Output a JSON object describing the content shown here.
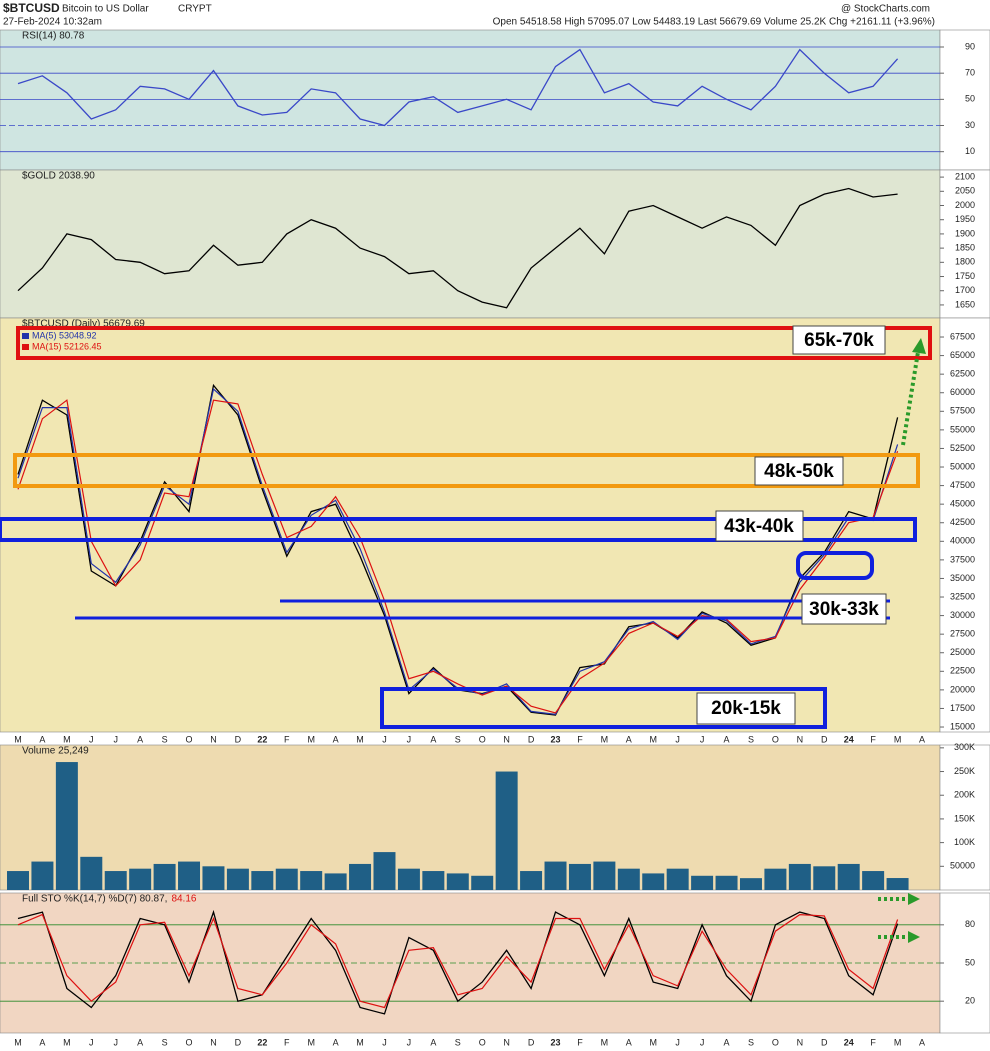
{
  "header": {
    "symbol": "$BTCUSD",
    "name": "Bitcoin to US Dollar",
    "exchange": "CRYPT",
    "date": "27-Feb-2024 10:32am",
    "quote": "Open 54518.58  High 57095.07  Low 54483.19  Last 56679.69  Volume 25.2K  Chg +2161.11 (+3.96%)",
    "source": "@ StockCharts.com"
  },
  "chart_data": [
    {
      "type": "line",
      "title": [
        "RSI(14) 80.78"
      ],
      "background": "#cfe5e1",
      "ylim": [
        -4,
        103
      ],
      "yticks": [
        10,
        30,
        50,
        70,
        90
      ],
      "grid": true,
      "series": [
        {
          "color": "#3a48c8",
          "values": [
            62,
            68,
            55,
            35,
            42,
            60,
            58,
            50,
            72,
            45,
            38,
            40,
            58,
            55,
            35,
            30,
            48,
            52,
            40,
            45,
            50,
            42,
            75,
            88,
            55,
            62,
            48,
            45,
            60,
            50,
            42,
            60,
            88,
            70,
            55,
            60,
            81,
            null
          ]
        }
      ]
    },
    {
      "type": "line",
      "title": [
        "$GOLD 2038.90"
      ],
      "background": "#dfe6d2",
      "ylim": [
        1604,
        2125
      ],
      "yticks": [
        1650,
        1700,
        1750,
        1800,
        1850,
        1900,
        1950,
        2000,
        2050,
        2100
      ],
      "grid": false,
      "series": [
        {
          "color": "#000000",
          "values": [
            1700,
            1780,
            1900,
            1880,
            1810,
            1800,
            1760,
            1770,
            1860,
            1790,
            1800,
            1900,
            1950,
            1920,
            1850,
            1820,
            1760,
            1770,
            1700,
            1660,
            1640,
            1780,
            1850,
            1920,
            1830,
            1980,
            2000,
            1960,
            1920,
            1960,
            1930,
            1860,
            2000,
            2040,
            2060,
            2030,
            2040,
            null
          ]
        }
      ]
    },
    {
      "type": "line",
      "title": [
        "$BTCUSD (Daily) 56679.69"
      ],
      "background": "#f1e7b3",
      "ylim": [
        14330,
        70060
      ],
      "yticks": [
        15000,
        17500,
        20000,
        22500,
        25000,
        27500,
        30000,
        32500,
        35000,
        37500,
        40000,
        42500,
        45000,
        47500,
        50000,
        52500,
        55000,
        57500,
        60000,
        62500,
        65000,
        67500
      ],
      "grid": false,
      "categories": [
        "M",
        "A",
        "M",
        "J",
        "J",
        "A",
        "S",
        "O",
        "N",
        "D",
        "22",
        "F",
        "M",
        "A",
        "M",
        "J",
        "J",
        "A",
        "S",
        "O",
        "N",
        "D",
        "23",
        "F",
        "M",
        "A",
        "M",
        "J",
        "J",
        "A",
        "S",
        "O",
        "N",
        "D",
        "24",
        "F",
        "M",
        "A"
      ],
      "annotations": [
        "65k-70k",
        "48k-50k",
        "43k-40k",
        "30k-33k",
        "20k-15k"
      ],
      "series": [
        {
          "color": "#000000",
          "values": [
            49000,
            59000,
            57000,
            36000,
            34000,
            40000,
            48000,
            44000,
            61000,
            57000,
            47000,
            38000,
            44000,
            45000,
            38000,
            30000,
            19500,
            23000,
            20000,
            19500,
            20500,
            17000,
            16600,
            23000,
            23500,
            28500,
            29000,
            27000,
            30500,
            29000,
            26000,
            27000,
            35000,
            38500,
            44000,
            43000,
            56679.69,
            null
          ]
        },
        {
          "name": "MA(5) 53048.92",
          "color": "#2233aa",
          "values": [
            48500,
            58000,
            58000,
            37000,
            34500,
            39500,
            47500,
            45000,
            60500,
            57500,
            47500,
            38500,
            43500,
            45500,
            39000,
            30500,
            20000,
            22800,
            20200,
            19400,
            20800,
            17100,
            16700,
            22500,
            23800,
            28200,
            29200,
            26800,
            30300,
            29300,
            26200,
            27200,
            34500,
            38200,
            43200,
            42800,
            53050,
            null
          ]
        },
        {
          "name": "MA(15) 52126.45",
          "color": "#dd1111",
          "values": [
            47000,
            56500,
            59000,
            40000,
            34000,
            37500,
            46500,
            46000,
            59000,
            58500,
            49000,
            40500,
            42000,
            46000,
            40500,
            32000,
            21500,
            22500,
            20800,
            19300,
            20500,
            17800,
            16900,
            21500,
            23600,
            27600,
            29000,
            27200,
            30000,
            29500,
            26500,
            27000,
            33500,
            37800,
            42500,
            43200,
            52130,
            null
          ]
        }
      ]
    },
    {
      "type": "bar",
      "title": [
        "Volume 25,249"
      ],
      "background": "#eedbb0",
      "ylim": [
        0,
        306000
      ],
      "yticks": [
        50000,
        {
          "value": 100000,
          "label": "100K"
        },
        {
          "value": 150000,
          "label": "150K"
        },
        {
          "value": 200000,
          "label": "200K"
        },
        {
          "value": 250000,
          "label": "250K"
        },
        {
          "value": 300000,
          "label": "300K"
        }
      ],
      "grid": false,
      "series": [
        {
          "color": "#1f5f86",
          "values": [
            40000,
            60000,
            270000,
            70000,
            40000,
            45000,
            55000,
            60000,
            50000,
            45000,
            40000,
            45000,
            40000,
            35000,
            55000,
            80000,
            45000,
            40000,
            35000,
            30000,
            250000,
            40000,
            60000,
            55000,
            60000,
            45000,
            35000,
            45000,
            30000,
            30000,
            25000,
            45000,
            55000,
            50000,
            55000,
            40000,
            25249,
            null
          ]
        }
      ]
    },
    {
      "type": "line",
      "title": [
        "Full STO %K(14,7) %D(7) 80.87,",
        "84.16"
      ],
      "background": "#f1d6c2",
      "ylim": [
        -5,
        105
      ],
      "yticks": [
        20,
        50,
        80
      ],
      "grid": true,
      "categories": [
        "M",
        "A",
        "M",
        "J",
        "J",
        "A",
        "S",
        "O",
        "N",
        "D",
        "22",
        "F",
        "M",
        "A",
        "M",
        "J",
        "J",
        "A",
        "S",
        "O",
        "N",
        "D",
        "23",
        "F",
        "M",
        "A",
        "M",
        "J",
        "J",
        "A",
        "S",
        "O",
        "N",
        "D",
        "24",
        "F",
        "M",
        "A"
      ],
      "series": [
        {
          "color": "#000000",
          "values": [
            85,
            90,
            30,
            15,
            40,
            85,
            80,
            35,
            90,
            20,
            25,
            55,
            85,
            60,
            15,
            10,
            70,
            60,
            20,
            35,
            60,
            30,
            90,
            80,
            40,
            85,
            35,
            30,
            80,
            40,
            20,
            80,
            90,
            85,
            40,
            25,
            80.87,
            null
          ]
        },
        {
          "color": "#dd1111",
          "values": [
            80,
            88,
            40,
            20,
            35,
            80,
            82,
            40,
            85,
            30,
            25,
            50,
            80,
            65,
            20,
            15,
            60,
            62,
            25,
            30,
            55,
            35,
            85,
            85,
            45,
            80,
            40,
            32,
            75,
            45,
            25,
            75,
            88,
            87,
            45,
            30,
            84.16,
            null
          ]
        }
      ]
    }
  ]
}
